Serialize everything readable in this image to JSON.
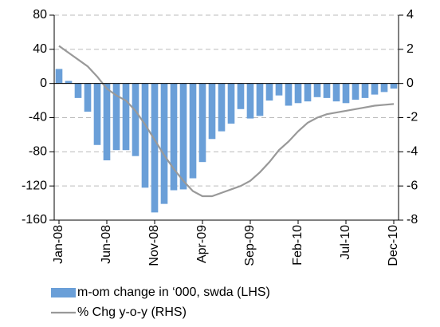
{
  "chart_data": {
    "type": "bar-line",
    "categories": [
      "Jan-08",
      null,
      null,
      null,
      null,
      "Jun-08",
      null,
      null,
      null,
      null,
      "Nov-08",
      null,
      null,
      null,
      null,
      "Apr-09",
      null,
      null,
      null,
      null,
      "Sep-09",
      null,
      null,
      null,
      null,
      "Feb-10",
      null,
      null,
      null,
      null,
      "Jul-10",
      null,
      null,
      null,
      null,
      "Dec-10"
    ],
    "series": [
      {
        "name": "m-om change in ‘000, swda (LHS)",
        "type": "bar",
        "color": "#6a9fd8",
        "values": [
          17,
          3,
          -17,
          -33,
          -72,
          -90,
          -78,
          -78,
          -85,
          -122,
          -151,
          -141,
          -125,
          -124,
          -111,
          -92,
          -65,
          -56,
          -47,
          -30,
          -41,
          -38,
          -20,
          -14,
          -26,
          -23,
          -21,
          -16,
          -17,
          -21,
          -23,
          -19,
          -17,
          -13,
          -10,
          -6
        ]
      },
      {
        "name": "% Chg y-o-y (RHS)",
        "type": "line",
        "color": "#999999",
        "axis": "y2",
        "values": [
          2.2,
          1.8,
          1.4,
          1.0,
          0.4,
          -0.3,
          -0.7,
          -1.0,
          -1.6,
          -2.4,
          -3.3,
          -4.2,
          -5.0,
          -5.7,
          -6.3,
          -6.6,
          -6.6,
          -6.4,
          -6.2,
          -6.0,
          -5.7,
          -5.2,
          -4.6,
          -3.9,
          -3.4,
          -2.8,
          -2.3,
          -2.0,
          -1.8,
          -1.7,
          -1.6,
          -1.5,
          -1.4,
          -1.3,
          -1.25,
          -1.2
        ]
      }
    ],
    "ylim": [
      -160,
      80
    ],
    "yticks": [
      -160,
      -120,
      -80,
      -40,
      0,
      40,
      80
    ],
    "y2lim": [
      -8,
      4
    ],
    "y2ticks": [
      -8,
      -6,
      -4,
      -2,
      0,
      2,
      4
    ],
    "grid": true
  }
}
